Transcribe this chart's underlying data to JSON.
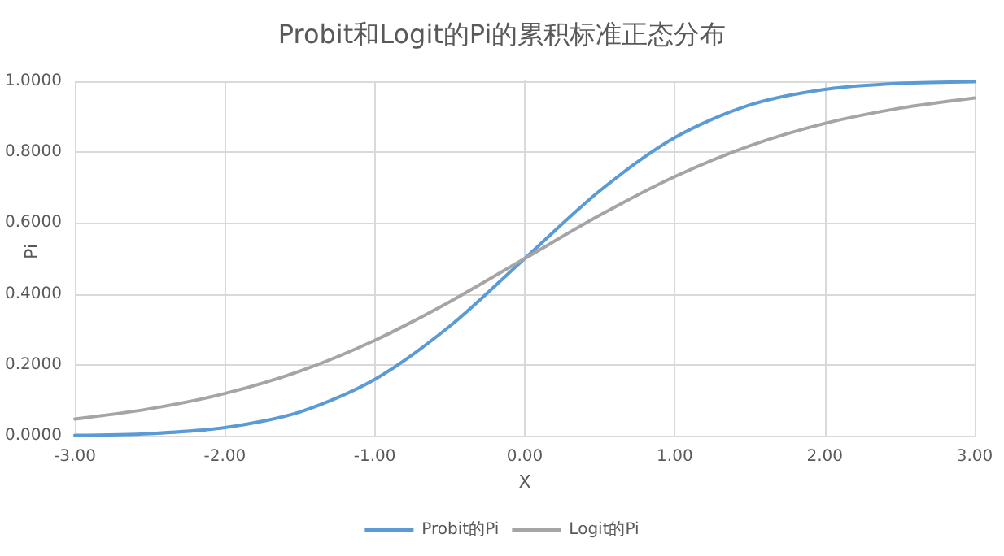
{
  "chart_data": {
    "type": "line",
    "title": "Probit和Logit的Pi的累积标准正态分布",
    "xlabel": "X",
    "ylabel": "Pi",
    "x": [
      -3,
      -2.5,
      -2,
      -1.5,
      -1,
      -0.5,
      0,
      0.5,
      1,
      1.5,
      2,
      2.5,
      3
    ],
    "series": [
      {
        "name": "Probit的Pi",
        "color": "#5b9bd5",
        "values": [
          0.001,
          0.006,
          0.023,
          0.067,
          0.159,
          0.309,
          0.5,
          0.691,
          0.841,
          0.933,
          0.977,
          0.994,
          0.999
        ]
      },
      {
        "name": "Logit的Pi",
        "color": "#a5a5a5",
        "values": [
          0.047,
          0.076,
          0.119,
          0.182,
          0.269,
          0.378,
          0.5,
          0.622,
          0.731,
          0.818,
          0.881,
          0.924,
          0.953
        ]
      }
    ],
    "xlim": [
      -3,
      3
    ],
    "xticks": [
      {
        "value": -3,
        "label": "-3.00"
      },
      {
        "value": -2,
        "label": "-2.00"
      },
      {
        "value": -1,
        "label": "-1.00"
      },
      {
        "value": 0,
        "label": "0.00"
      },
      {
        "value": 1,
        "label": "1.00"
      },
      {
        "value": 2,
        "label": "2.00"
      },
      {
        "value": 3,
        "label": "3.00"
      }
    ],
    "ylim": [
      0,
      1
    ],
    "yticks": [
      {
        "value": 0,
        "label": "0.0000"
      },
      {
        "value": 0.2,
        "label": "0.2000"
      },
      {
        "value": 0.4,
        "label": "0.4000"
      },
      {
        "value": 0.6,
        "label": "0.6000"
      },
      {
        "value": 0.8,
        "label": "0.8000"
      },
      {
        "value": 1,
        "label": "1.0000"
      }
    ],
    "grid": true,
    "legend": "bottom",
    "marker": "none",
    "line_style": "solid"
  }
}
